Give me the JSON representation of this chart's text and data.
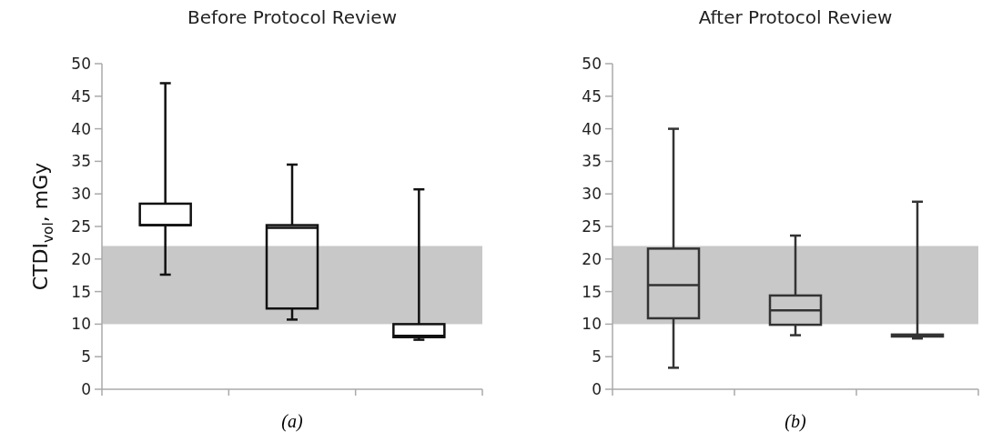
{
  "chart_data": [
    {
      "type": "box",
      "title": "Before Protocol Review",
      "ylabel": "CTDI$_{vol}$, mGy",
      "categories": [
        null,
        null,
        null
      ],
      "ylim": [
        0,
        50
      ],
      "yticks": [
        0,
        5,
        10,
        15,
        20,
        25,
        30,
        35,
        40,
        45,
        50
      ],
      "grid": false,
      "series": [
        {
          "color": "#111111",
          "boxes": [
            {
              "low": 17.6,
              "q1": 25.2,
              "median": 25.2,
              "q3": 28.5,
              "high": 47
            },
            {
              "low": 10.7,
              "q1": 12.4,
              "median": 24.8,
              "q3": 25.2,
              "high": 34.5
            },
            {
              "low": 7.6,
              "q1": 8,
              "median": 8.2,
              "q3": 10,
              "high": 30.7
            }
          ]
        }
      ],
      "bands": [
        {
          "axis": "y",
          "from": 10,
          "to": 22,
          "color": "#c8c8c8"
        }
      ],
      "annotations": [
        "(a)"
      ]
    },
    {
      "type": "box",
      "title": "After Protocol Review",
      "categories": [
        null,
        null,
        null
      ],
      "ylim": [
        0,
        50
      ],
      "yticks": [
        0,
        5,
        10,
        15,
        20,
        25,
        30,
        35,
        40,
        45,
        50
      ],
      "grid": false,
      "series": [
        {
          "color": "#333333",
          "boxes": [
            {
              "low": 3.3,
              "q1": 10.9,
              "median": 16,
              "q3": 21.6,
              "high": 40
            },
            {
              "low": 8.3,
              "q1": 9.9,
              "median": 12.1,
              "q3": 14.4,
              "high": 23.6
            },
            {
              "low": 7.8,
              "q1": 8.1,
              "median": 8.2,
              "q3": 8.4,
              "high": 28.8
            }
          ]
        }
      ],
      "bands": [
        {
          "axis": "y",
          "from": 10,
          "to": 22,
          "color": "#c8c8c8"
        }
      ],
      "annotations": [
        "(b)"
      ]
    }
  ]
}
